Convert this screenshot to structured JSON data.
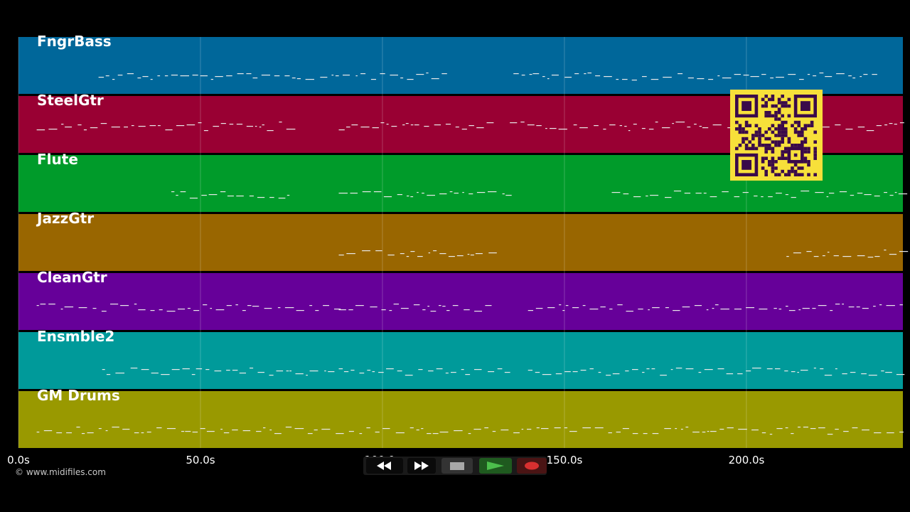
{
  "tracks": [
    {
      "name": "FngrBass",
      "color": "#00679a"
    },
    {
      "name": "SteelGtr",
      "color": "#990033"
    },
    {
      "name": "Flute",
      "color": "#009b2a"
    },
    {
      "name": "JazzGtr",
      "color": "#996600"
    },
    {
      "name": "CleanGtr",
      "color": "#660099"
    },
    {
      "name": "Ensmble2",
      "color": "#009a9a"
    },
    {
      "name": "GM Drums",
      "color": "#999900"
    }
  ],
  "timeline": {
    "ticks": [
      "0.0s",
      "50.0s",
      "100.0s",
      "150.0s",
      "200.0s"
    ],
    "tick_values": [
      0,
      50,
      100,
      150,
      200
    ],
    "range_seconds": [
      0,
      243
    ]
  },
  "copyright": "© www.midifiles.com",
  "transport": {
    "rewind": "rewind-icon",
    "fast_forward": "fast-forward-icon",
    "stop": "stop-icon",
    "play": "play-icon",
    "record": "record-icon"
  },
  "colors": {
    "background": "#000000",
    "grid": "#ffffff",
    "qr_background": "#f7e03a",
    "qr_module": "#3a0a4a"
  }
}
